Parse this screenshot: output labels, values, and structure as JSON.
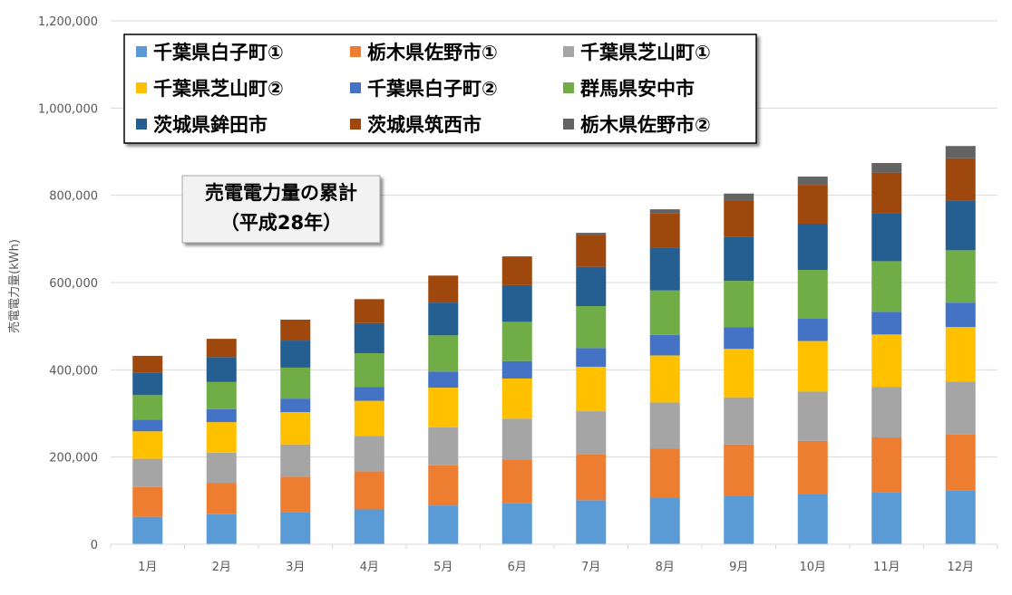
{
  "chart_data": {
    "type": "bar",
    "stacked": true,
    "title": "",
    "ylabel": "売電電力量(kWh)",
    "xlabel": "",
    "ylim": [
      0,
      1200000
    ],
    "y_ticks": [
      0,
      200000,
      400000,
      600000,
      800000,
      1000000,
      1200000
    ],
    "y_tick_labels": [
      "0",
      "200,000",
      "400,000",
      "600,000",
      "800,000",
      "1,000,000",
      "1,200,000"
    ],
    "grid": true,
    "legend_placement": "top",
    "annotation": {
      "line1": "売電電力量の累計",
      "line2": "（平成28年）"
    },
    "categories": [
      "1月",
      "2月",
      "3月",
      "4月",
      "5月",
      "6月",
      "7月",
      "8月",
      "9月",
      "10月",
      "11月",
      "12月"
    ],
    "series": [
      {
        "name": "千葉県白子町①",
        "color": "#5B9BD5",
        "values": [
          63000,
          69000,
          74000,
          80000,
          89000,
          95000,
          101000,
          107000,
          111000,
          116000,
          120000,
          124000
        ]
      },
      {
        "name": "栃木県佐野市①",
        "color": "#ED7D31",
        "values": [
          68000,
          72000,
          81000,
          87000,
          92000,
          99000,
          106000,
          112000,
          118000,
          121000,
          125000,
          128000
        ]
      },
      {
        "name": "千葉県芝山町①",
        "color": "#A5A5A5",
        "values": [
          65000,
          69000,
          74000,
          81000,
          87000,
          94000,
          98000,
          106000,
          108000,
          113000,
          116000,
          121000
        ]
      },
      {
        "name": "千葉県芝山町②",
        "color": "#FFC000",
        "values": [
          63000,
          70000,
          74000,
          81000,
          91000,
          92000,
          102000,
          108000,
          111000,
          116000,
          120000,
          125000
        ]
      },
      {
        "name": "千葉県白子町②",
        "color": "#4472C4",
        "values": [
          27000,
          30000,
          31000,
          32000,
          37000,
          40000,
          43000,
          47000,
          50000,
          51000,
          52000,
          56000
        ]
      },
      {
        "name": "群馬県安中市",
        "color": "#70AD47",
        "values": [
          56000,
          62000,
          71000,
          77000,
          83000,
          90000,
          96000,
          102000,
          106000,
          112000,
          116000,
          120000
        ]
      },
      {
        "name": "茨城県鉾田市",
        "color": "#255E91",
        "values": [
          52000,
          57000,
          62000,
          69000,
          75000,
          84000,
          90000,
          97000,
          100000,
          106000,
          110000,
          113000
        ]
      },
      {
        "name": "茨城県筑西市",
        "color": "#9E480E",
        "values": [
          38000,
          42000,
          48000,
          55000,
          62000,
          66000,
          72000,
          79000,
          84000,
          89000,
          93000,
          98000
        ]
      },
      {
        "name": "栃木県佐野市②",
        "color": "#636363",
        "values": [
          0,
          0,
          0,
          0,
          0,
          0,
          6000,
          10000,
          16000,
          19000,
          22000,
          28000
        ]
      }
    ]
  }
}
